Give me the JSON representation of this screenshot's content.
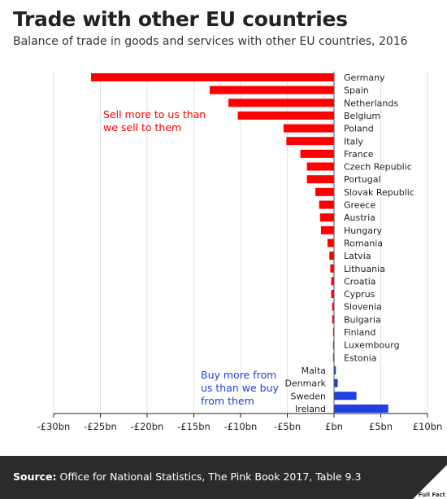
{
  "header": {
    "title": "Trade with other EU countries",
    "subtitle": "Balance of trade in goods and services with other EU countries, 2016"
  },
  "footer": {
    "source_label": "Source:",
    "source_text": "Office for National Statistics, The Pink Book 2017, Table 9.3",
    "logo_text": "Full Fact"
  },
  "colors": {
    "negative": "#ff0000",
    "positive": "#1f3fe0",
    "footer_bg": "#2b2b2b"
  },
  "chart_data": {
    "type": "bar",
    "orientation": "horizontal",
    "unit": "£bn",
    "xlim": [
      -30,
      10
    ],
    "x_ticks": [
      {
        "value": -30,
        "label": "-£30bn"
      },
      {
        "value": -25,
        "label": "-£25bn"
      },
      {
        "value": -20,
        "label": "-£20bn"
      },
      {
        "value": -15,
        "label": "-£15bn"
      },
      {
        "value": -10,
        "label": "-£10bn"
      },
      {
        "value": -5,
        "label": "-£5bn"
      },
      {
        "value": 0,
        "label": "£bn"
      },
      {
        "value": 5,
        "label": "£5bn"
      },
      {
        "value": 10,
        "label": "£10bn"
      }
    ],
    "grid": true,
    "categories": [
      "Germany",
      "Spain",
      "Netherlands",
      "Belgium",
      "Poland",
      "Italy",
      "France",
      "Czech Republic",
      "Portugal",
      "Slovak Republic",
      "Greece",
      "Austria",
      "Hungary",
      "Romania",
      "Latvia",
      "Lithuania",
      "Croatia",
      "Cyprus",
      "Slovenia",
      "Bulgaria",
      "Finland",
      "Luxembourg",
      "Estonia",
      "Malta",
      "Denmark",
      "Sweden",
      "Ireland"
    ],
    "values": [
      -26.0,
      -13.3,
      -11.3,
      -10.3,
      -5.4,
      -5.1,
      -3.6,
      -2.9,
      -2.9,
      -2.0,
      -1.6,
      -1.5,
      -1.4,
      -0.7,
      -0.5,
      -0.4,
      -0.3,
      -0.3,
      -0.2,
      -0.2,
      -0.1,
      -0.1,
      -0.1,
      0.2,
      0.4,
      2.4,
      5.8
    ],
    "annotations": [
      {
        "text": [
          "Sell more to us than",
          "we sell to them"
        ],
        "color": "#ff0000"
      },
      {
        "text": [
          "Buy more from",
          "us than we buy",
          "from them"
        ],
        "color": "#1f3fe0"
      }
    ]
  }
}
